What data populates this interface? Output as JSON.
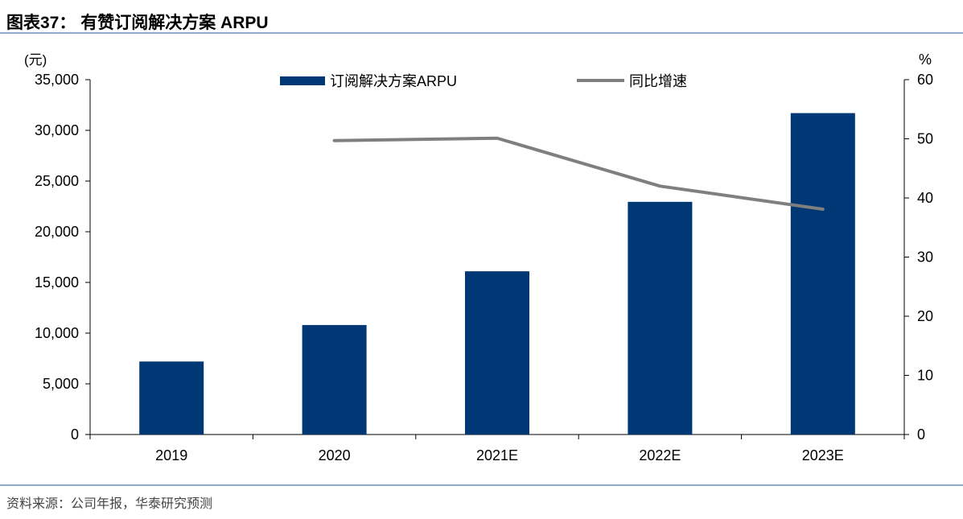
{
  "title": "图表37：  有赞订阅解决方案 ARPU",
  "source": "资料来源：公司年报，华泰研究预测",
  "chart_data": {
    "type": "bar+line",
    "categories": [
      "2019",
      "2020",
      "2021E",
      "2022E",
      "2023E"
    ],
    "series": [
      {
        "name": "订阅解决方案ARPU",
        "type": "bar",
        "axis": "left",
        "color": "#003876",
        "values": [
          7200,
          10800,
          16100,
          22950,
          31700
        ]
      },
      {
        "name": "同比增速",
        "type": "line",
        "axis": "right",
        "color": "#7f7f7f",
        "values": [
          null,
          49.7,
          50.1,
          42.0,
          38.1
        ]
      }
    ],
    "left_axis": {
      "label": "(元)",
      "ylim": [
        0,
        35000
      ],
      "ticks": [
        "0",
        "5,000",
        "10,000",
        "15,000",
        "20,000",
        "25,000",
        "30,000",
        "35,000"
      ]
    },
    "right_axis": {
      "label": "%",
      "ylim": [
        0,
        60
      ],
      "ticks": [
        "0",
        "10",
        "20",
        "30",
        "40",
        "50",
        "60"
      ]
    },
    "legend": "top-center",
    "grid": false
  }
}
